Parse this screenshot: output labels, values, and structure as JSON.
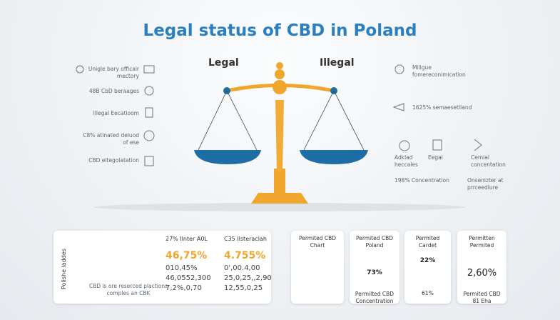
{
  "title": "Legal status of CBD in Poland",
  "scale": {
    "left_label": "Legal",
    "right_label": "Illegal"
  },
  "left_items": [
    {
      "lines": [
        "Unigle bary officair",
        "mectory"
      ]
    },
    {
      "lines": [
        "48B CbD beraages"
      ]
    },
    {
      "lines": [
        "Illegal Eecatioom"
      ]
    },
    {
      "lines": [
        "C8% atinated deluod",
        "of ese"
      ]
    },
    {
      "lines": [
        "CBD eltegolatation"
      ]
    }
  ],
  "right_items": [
    {
      "lines": [
        "Miligue",
        "fomereconimication"
      ]
    },
    {
      "lines": [
        "1625% semaesetlland"
      ]
    },
    {
      "lines": [
        "Adklad",
        "heccales"
      ]
    },
    {
      "lines": [
        "Eegal"
      ]
    },
    {
      "lines": [
        "Cemial",
        "concentation"
      ]
    },
    {
      "lines": [
        "198% Concentration"
      ]
    },
    {
      "lines": [
        "Onsenizter at",
        "prrceedlure"
      ]
    }
  ],
  "summary_card": {
    "side_label": "Polishe laddes",
    "caption": [
      "CBD is ore reserced plactions",
      "comples an CBK"
    ],
    "columns": [
      {
        "header": "27% Ilnter A0L",
        "highlight": "46,75%",
        "rows": [
          "010,45%",
          "46,0552,300",
          "7,2%,0,70"
        ]
      },
      {
        "header": "C35 Ilsteraclah",
        "highlight": "4.755%",
        "rows": [
          "0',00.4,00",
          "25,0,25,,2,90",
          "12,55,0,25"
        ]
      }
    ]
  },
  "cards": [
    {
      "title": [
        "Permited CBD",
        "Chart"
      ]
    },
    {
      "title": [
        "Permited CBD",
        "Poland"
      ],
      "value": "73%",
      "caption": [
        "Permilted CBD",
        "Concentration"
      ]
    },
    {
      "title": [
        "Permited",
        "Cardet"
      ],
      "value": "22%",
      "caption": [
        "61%"
      ]
    },
    {
      "title": [
        "Permitten",
        "Permited"
      ],
      "value": "2,60%",
      "caption": [
        "Permited CBD",
        "81 Eha"
      ]
    }
  ]
}
